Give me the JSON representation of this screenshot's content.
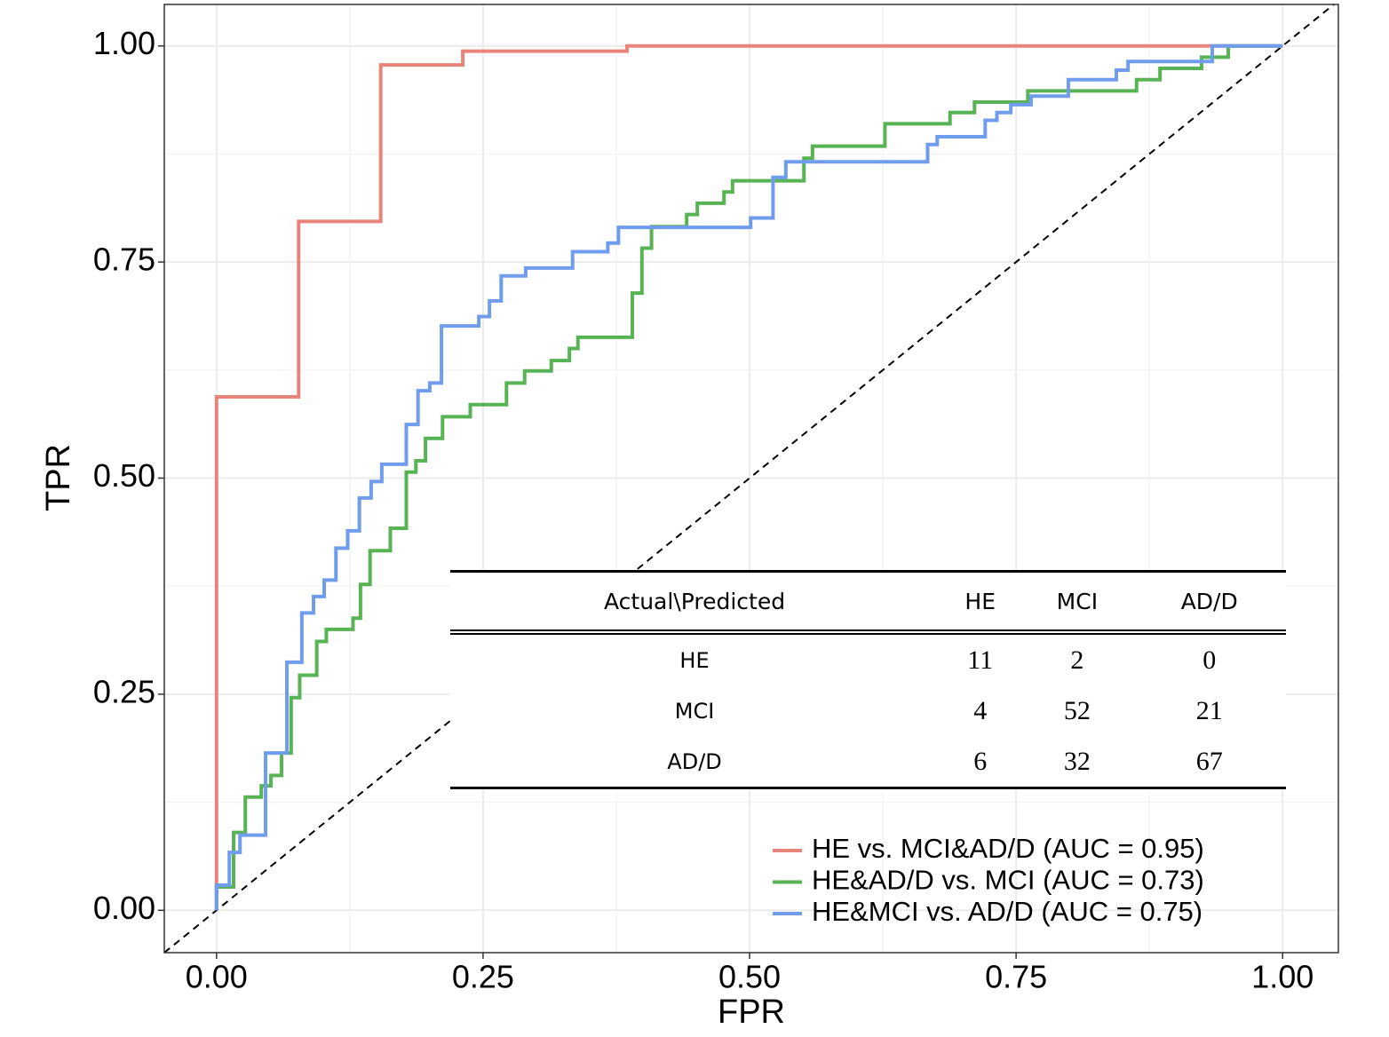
{
  "chart_data": {
    "type": "line",
    "step": "hv",
    "xlabel": "FPR",
    "ylabel": "TPR",
    "xlim": [
      -0.049,
      1.0523
    ],
    "ylim": [
      -0.049,
      1.048
    ],
    "xticks": [
      {
        "value": 0,
        "label": "0.00"
      },
      {
        "value": 0.25,
        "label": "0.25"
      },
      {
        "value": 0.5,
        "label": "0.50"
      },
      {
        "value": 0.75,
        "label": "0.75"
      },
      {
        "value": 1,
        "label": "1.00"
      }
    ],
    "yticks": [
      {
        "value": 0,
        "label": "0.00"
      },
      {
        "value": 0.25,
        "label": "0.25"
      },
      {
        "value": 0.5,
        "label": "0.50"
      },
      {
        "value": 0.75,
        "label": "0.75"
      },
      {
        "value": 1,
        "label": "1.00"
      }
    ],
    "grid": true,
    "legend": "bottom-right",
    "series": [
      {
        "name": "HE vs. MCI&AD/D (AUC = 0.95)",
        "color": "#e8847a",
        "x": [
          0,
          0,
          0.077,
          0.154,
          0.231,
          0.385,
          1
        ],
        "values": [
          0,
          0.594,
          0.797,
          0.978,
          0.994,
          1.0,
          1.0
        ]
      },
      {
        "name": "HE&AD/D vs. MCI (AUC = 0.73)",
        "color": "#57b354",
        "x": [
          0,
          0,
          0.016,
          0.027,
          0.042,
          0.051,
          0.061,
          0.07,
          0.078,
          0.094,
          0.103,
          0.128,
          0.135,
          0.144,
          0.163,
          0.178,
          0.187,
          0.196,
          0.212,
          0.238,
          0.272,
          0.289,
          0.314,
          0.331,
          0.339,
          0.39,
          0.399,
          0.408,
          0.441,
          0.451,
          0.476,
          0.484,
          0.551,
          0.559,
          0.627,
          0.688,
          0.711,
          0.761,
          0.863,
          0.885,
          0.924,
          0.949,
          1
        ],
        "values": [
          0,
          0.027,
          0.09,
          0.131,
          0.144,
          0.156,
          0.182,
          0.246,
          0.272,
          0.311,
          0.325,
          0.338,
          0.377,
          0.416,
          0.442,
          0.507,
          0.52,
          0.546,
          0.571,
          0.585,
          0.61,
          0.624,
          0.636,
          0.65,
          0.663,
          0.714,
          0.766,
          0.791,
          0.805,
          0.818,
          0.831,
          0.844,
          0.87,
          0.884,
          0.91,
          0.923,
          0.935,
          0.948,
          0.961,
          0.974,
          0.987,
          1.0,
          1.0
        ]
      },
      {
        "name": "HE&MCI vs. AD/D (AUC = 0.75)",
        "color": "#6f9cec",
        "x": [
          0,
          0,
          0.012,
          0.022,
          0.046,
          0.066,
          0.08,
          0.091,
          0.101,
          0.112,
          0.123,
          0.134,
          0.145,
          0.155,
          0.178,
          0.189,
          0.2,
          0.211,
          0.246,
          0.256,
          0.267,
          0.29,
          0.334,
          0.367,
          0.377,
          0.501,
          0.522,
          0.534,
          0.667,
          0.676,
          0.721,
          0.732,
          0.745,
          0.764,
          0.799,
          0.844,
          0.855,
          0.934,
          1
        ],
        "values": [
          0,
          0.029,
          0.067,
          0.087,
          0.182,
          0.287,
          0.344,
          0.363,
          0.382,
          0.419,
          0.439,
          0.477,
          0.496,
          0.516,
          0.562,
          0.601,
          0.61,
          0.676,
          0.687,
          0.705,
          0.734,
          0.743,
          0.762,
          0.772,
          0.79,
          0.801,
          0.848,
          0.866,
          0.886,
          0.895,
          0.914,
          0.923,
          0.932,
          0.942,
          0.961,
          0.972,
          0.982,
          1.0,
          1.0
        ]
      }
    ]
  },
  "table": {
    "header": [
      "Actual\\Predicted",
      "HE",
      "MCI",
      "AD/D"
    ],
    "rows": [
      [
        "HE",
        "11",
        "2",
        "0"
      ],
      [
        "MCI",
        "4",
        "52",
        "21"
      ],
      [
        "AD/D",
        "6",
        "32",
        "67"
      ]
    ]
  }
}
